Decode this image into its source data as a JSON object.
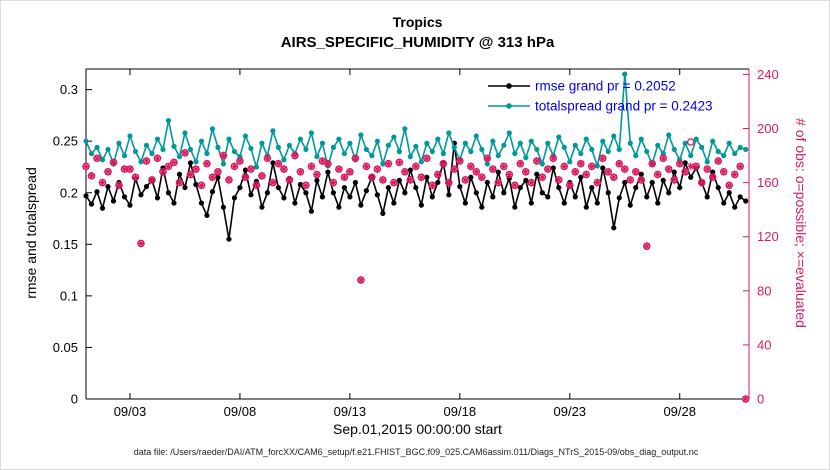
{
  "figure": {
    "suptitle": "Tropics",
    "title": "AIRS_SPECIFIC_HUMIDITY @ 313 hPa",
    "xlabel": "Sep.01,2015 00:00:00 start",
    "ylabel_left": "rmse and totalspread",
    "ylabel_right": "# of obs: o=possible; ×=evaluated",
    "caption": "data file: /Users/raeder/DAI/ATM_forcXX/CAM6_setup/f.e21.FHIST_BGC.f09_025.CAM6assim.011/Diags_NTrS_2015-09/obs_diag_output.nc"
  },
  "legend": {
    "text_color": "#0000EE"
  },
  "chart_data": {
    "type": "line",
    "suptitle": "Tropics",
    "title": "AIRS_SPECIFIC_HUMIDITY @ 313 hPa",
    "xlabel": "Sep.01,2015 00:00:00 start",
    "ylabel_left": "rmse and totalspread",
    "ylabel_right": "# of obs: o=possible; ×=evaluated",
    "grid": false,
    "legend_position": "top-right-inside",
    "right_axis_color": "#D81B60",
    "x_units": "days since Sep 01, 2015 00:00",
    "x_rule": {
      "start": 0,
      "step": 0.25,
      "count": 121
    },
    "xlim": [
      0,
      30.15
    ],
    "xticks": [
      {
        "t": 2,
        "label": "09/03"
      },
      {
        "t": 7,
        "label": "09/08"
      },
      {
        "t": 12,
        "label": "09/13"
      },
      {
        "t": 17,
        "label": "09/18"
      },
      {
        "t": 22,
        "label": "09/23"
      },
      {
        "t": 27,
        "label": "09/28"
      }
    ],
    "ylim_left": [
      0,
      0.32
    ],
    "yticks_left": [
      {
        "v": 0,
        "label": "0"
      },
      {
        "v": 0.05,
        "label": "0.05"
      },
      {
        "v": 0.1,
        "label": "0.1"
      },
      {
        "v": 0.15,
        "label": "0.15"
      },
      {
        "v": 0.2,
        "label": "0.2"
      },
      {
        "v": 0.25,
        "label": "0.25"
      },
      {
        "v": 0.3,
        "label": "0.3"
      }
    ],
    "ylim_right": [
      0,
      244
    ],
    "yticks_right": [
      {
        "v": 0,
        "label": "0"
      },
      {
        "v": 40,
        "label": "40"
      },
      {
        "v": 80,
        "label": "80"
      },
      {
        "v": 120,
        "label": "120"
      },
      {
        "v": 160,
        "label": "160"
      },
      {
        "v": 200,
        "label": "200"
      },
      {
        "v": 240,
        "label": "240"
      }
    ],
    "series": [
      {
        "name": "rmse",
        "axis": "left",
        "color": "#000000",
        "marker": "filled-circle",
        "line": true,
        "legend_label": "rmse grand pr = 0.2052",
        "grand_pr": 0.2052,
        "values": [
          0.197,
          0.189,
          0.201,
          0.185,
          0.206,
          0.192,
          0.21,
          0.196,
          0.188,
          0.214,
          0.198,
          0.206,
          0.212,
          0.195,
          0.224,
          0.2,
          0.19,
          0.218,
          0.205,
          0.229,
          0.208,
          0.19,
          0.178,
          0.201,
          0.215,
          0.186,
          0.155,
          0.195,
          0.205,
          0.222,
          0.198,
          0.211,
          0.186,
          0.2,
          0.229,
          0.205,
          0.195,
          0.214,
          0.19,
          0.208,
          0.2,
          0.182,
          0.212,
          0.196,
          0.22,
          0.2,
          0.186,
          0.205,
          0.196,
          0.21,
          0.188,
          0.202,
          0.215,
          0.198,
          0.18,
          0.205,
          0.19,
          0.212,
          0.2,
          0.222,
          0.205,
          0.188,
          0.215,
          0.196,
          0.21,
          0.229,
          0.198,
          0.248,
          0.206,
          0.19,
          0.215,
          0.2,
          0.186,
          0.21,
          0.196,
          0.22,
          0.2,
          0.214,
          0.186,
          0.205,
          0.212,
          0.19,
          0.218,
          0.2,
          0.196,
          0.224,
          0.205,
          0.19,
          0.21,
          0.196,
          0.215,
          0.186,
          0.205,
          0.19,
          0.224,
          0.2,
          0.166,
          0.195,
          0.21,
          0.188,
          0.205,
          0.218,
          0.196,
          0.21,
          0.19,
          0.212,
          0.2,
          0.22,
          0.205,
          0.229,
          0.215,
          0.224,
          0.21,
          0.196,
          0.22,
          0.205,
          0.19,
          0.2,
          0.186,
          0.196,
          0.192
        ]
      },
      {
        "name": "totalspread",
        "axis": "left",
        "color": "#00999B",
        "marker": "filled-circle",
        "line": true,
        "legend_label": "totalspread grand pr = 0.2423",
        "grand_pr": 0.2423,
        "values": [
          0.25,
          0.238,
          0.244,
          0.232,
          0.242,
          0.228,
          0.248,
          0.236,
          0.255,
          0.24,
          0.23,
          0.246,
          0.238,
          0.252,
          0.242,
          0.27,
          0.245,
          0.235,
          0.258,
          0.242,
          0.23,
          0.25,
          0.238,
          0.262,
          0.244,
          0.228,
          0.252,
          0.24,
          0.235,
          0.255,
          0.243,
          0.225,
          0.248,
          0.236,
          0.26,
          0.244,
          0.232,
          0.246,
          0.238,
          0.252,
          0.242,
          0.258,
          0.235,
          0.248,
          0.226,
          0.244,
          0.252,
          0.238,
          0.248,
          0.232,
          0.256,
          0.242,
          0.236,
          0.25,
          0.228,
          0.246,
          0.254,
          0.24,
          0.262,
          0.235,
          0.245,
          0.23,
          0.248,
          0.24,
          0.252,
          0.238,
          0.258,
          0.244,
          0.232,
          0.248,
          0.24,
          0.255,
          0.242,
          0.228,
          0.25,
          0.236,
          0.246,
          0.258,
          0.238,
          0.248,
          0.234,
          0.25,
          0.242,
          0.228,
          0.248,
          0.236,
          0.254,
          0.244,
          0.23,
          0.246,
          0.238,
          0.252,
          0.242,
          0.226,
          0.25,
          0.24,
          0.255,
          0.242,
          0.315,
          0.248,
          0.236,
          0.252,
          0.24,
          0.228,
          0.246,
          0.238,
          0.256,
          0.242,
          0.232,
          0.248,
          0.236,
          0.252,
          0.244,
          0.23,
          0.25,
          0.24,
          0.236,
          0.248,
          0.238,
          0.244,
          0.242
        ]
      },
      {
        "name": "obs-possible",
        "axis": "right",
        "color": "#D81B60",
        "marker": "open-circle",
        "line": false,
        "values": [
          172,
          165,
          178,
          160,
          168,
          175,
          158,
          170,
          170,
          164,
          115,
          176,
          162,
          178,
          168,
          172,
          175,
          160,
          182,
          166,
          170,
          158,
          174,
          164,
          168,
          180,
          162,
          172,
          176,
          164,
          170,
          158,
          165,
          178,
          160,
          174,
          170,
          162,
          180,
          168,
          158,
          172,
          166,
          176,
          174,
          160,
          170,
          164,
          168,
          178,
          88,
          172,
          164,
          170,
          162,
          174,
          160,
          175,
          168,
          162,
          172,
          164,
          178,
          158,
          166,
          174,
          160,
          170,
          176,
          162,
          172,
          168,
          164,
          178,
          170,
          160,
          172,
          166,
          158,
          174,
          168,
          160,
          176,
          164,
          170,
          178,
          162,
          172,
          158,
          168,
          174,
          166,
          172,
          160,
          178,
          168,
          164,
          174,
          170,
          162,
          168,
          162,
          113,
          174,
          166,
          178,
          170,
          162,
          174,
          168,
          190,
          172,
          160,
          170,
          164,
          176,
          168,
          158,
          166,
          172,
          0
        ]
      },
      {
        "name": "obs-evaluated",
        "axis": "right",
        "color": "#D81B60",
        "marker": "asterisk",
        "line": false,
        "values": [
          172,
          165,
          178,
          160,
          168,
          175,
          158,
          170,
          170,
          164,
          115,
          176,
          162,
          178,
          168,
          172,
          175,
          160,
          182,
          166,
          170,
          158,
          174,
          164,
          168,
          180,
          162,
          172,
          176,
          164,
          170,
          158,
          165,
          178,
          160,
          174,
          170,
          162,
          180,
          168,
          158,
          172,
          166,
          176,
          174,
          160,
          170,
          164,
          168,
          178,
          88,
          172,
          164,
          170,
          162,
          174,
          160,
          175,
          168,
          162,
          172,
          164,
          178,
          158,
          166,
          174,
          160,
          170,
          176,
          162,
          172,
          168,
          164,
          178,
          170,
          160,
          172,
          166,
          158,
          174,
          168,
          160,
          176,
          164,
          170,
          178,
          162,
          172,
          158,
          168,
          174,
          166,
          172,
          160,
          178,
          168,
          164,
          174,
          170,
          162,
          168,
          162,
          113,
          174,
          166,
          178,
          170,
          162,
          174,
          168,
          172,
          172,
          160,
          170,
          164,
          176,
          168,
          158,
          166,
          172,
          0
        ]
      }
    ]
  }
}
